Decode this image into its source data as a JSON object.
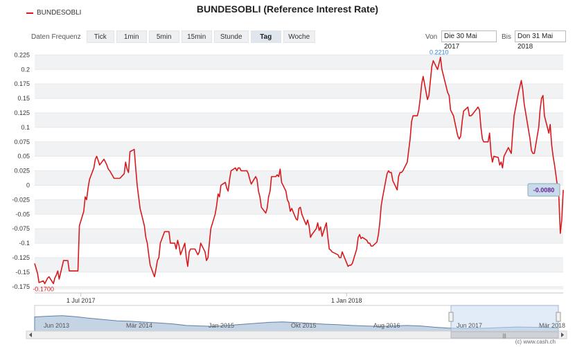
{
  "title": "BUNDESOBLI (Reference Interest Rate)",
  "legend": {
    "label": "BUNDESOBLI",
    "color": "#d7191c"
  },
  "toolbar": {
    "freq_label": "Daten Frequenz",
    "buttons": [
      "Tick",
      "1min",
      "5min",
      "15min",
      "Stunde",
      "Tag",
      "Woche"
    ],
    "active": "Tag",
    "from_label": "Von",
    "from_value": "Die 30 Mai 2017",
    "to_label": "Bis",
    "to_value": "Don 31 Mai 2018"
  },
  "credit": "(c) www.cash.ch",
  "navigator": {
    "labels": [
      "Jun 2013",
      "Mär 2014",
      "Jan 2015",
      "Okt 2015",
      "Aug 2016",
      "Jun 2017",
      "Mär 2018"
    ],
    "selection": [
      "2017-05-30",
      "2018-05-31"
    ]
  },
  "chart_data": {
    "type": "line",
    "title": "BUNDESOBLI (Reference Interest Rate)",
    "xlabel": "",
    "ylabel": "",
    "x_ticks": [
      "1 Jul 2017",
      "1 Jan 2018"
    ],
    "y_ticks": [
      "-0.175",
      "-0.15",
      "-0.125",
      "-0.1",
      "-0.075",
      "-0.05",
      "-0.025",
      "0",
      "0.025",
      "0.05",
      "0.075",
      "0.1",
      "0.125",
      "0.15",
      "0.175",
      "0.2",
      "0.225"
    ],
    "xlim": [
      "2017-05-30",
      "2018-05-31"
    ],
    "ylim": [
      -0.18,
      0.235
    ],
    "grid": true,
    "legend_position": "top-left",
    "annotations": {
      "min_label": "-0.1700",
      "max_label": "0.2210",
      "last_label": "-0.0080"
    },
    "series": [
      {
        "name": "BUNDESOBLI",
        "color": "#d7191c",
        "points": [
          [
            "2017-05-30",
            -0.135
          ],
          [
            "2017-06-01",
            -0.152
          ],
          [
            "2017-06-02",
            -0.168
          ],
          [
            "2017-06-05",
            -0.165
          ],
          [
            "2017-06-06",
            -0.17
          ],
          [
            "2017-06-07",
            -0.165
          ],
          [
            "2017-06-08",
            -0.16
          ],
          [
            "2017-06-09",
            -0.158
          ],
          [
            "2017-06-12",
            -0.17
          ],
          [
            "2017-06-13",
            -0.16
          ],
          [
            "2017-06-14",
            -0.155
          ],
          [
            "2017-06-15",
            -0.148
          ],
          [
            "2017-06-16",
            -0.162
          ],
          [
            "2017-06-19",
            -0.13
          ],
          [
            "2017-06-20",
            -0.13
          ],
          [
            "2017-06-21",
            -0.13
          ],
          [
            "2017-06-22",
            -0.13
          ],
          [
            "2017-06-23",
            -0.148
          ],
          [
            "2017-06-26",
            -0.148
          ],
          [
            "2017-06-27",
            -0.148
          ],
          [
            "2017-06-28",
            -0.148
          ],
          [
            "2017-06-29",
            -0.148
          ],
          [
            "2017-06-30",
            -0.07
          ],
          [
            "2017-07-03",
            -0.045
          ],
          [
            "2017-07-04",
            -0.02
          ],
          [
            "2017-07-05",
            -0.025
          ],
          [
            "2017-07-06",
            -0.005
          ],
          [
            "2017-07-07",
            0.01
          ],
          [
            "2017-07-10",
            0.03
          ],
          [
            "2017-07-11",
            0.045
          ],
          [
            "2017-07-12",
            0.05
          ],
          [
            "2017-07-13",
            0.043
          ],
          [
            "2017-07-14",
            0.035
          ],
          [
            "2017-07-17",
            0.045
          ],
          [
            "2017-07-18",
            0.04
          ],
          [
            "2017-07-19",
            0.035
          ],
          [
            "2017-07-20",
            0.028
          ],
          [
            "2017-07-21",
            0.025
          ],
          [
            "2017-07-24",
            0.012
          ],
          [
            "2017-07-25",
            0.012
          ],
          [
            "2017-07-26",
            0.012
          ],
          [
            "2017-07-27",
            0.012
          ],
          [
            "2017-07-28",
            0.012
          ],
          [
            "2017-07-31",
            0.02
          ],
          [
            "2017-08-01",
            0.04
          ],
          [
            "2017-08-02",
            0.028
          ],
          [
            "2017-08-03",
            0.022
          ],
          [
            "2017-08-04",
            0.058
          ],
          [
            "2017-08-07",
            0.062
          ],
          [
            "2017-08-08",
            0.03
          ],
          [
            "2017-08-09",
            0.0
          ],
          [
            "2017-08-10",
            -0.02
          ],
          [
            "2017-08-11",
            -0.04
          ],
          [
            "2017-08-14",
            -0.07
          ],
          [
            "2017-08-15",
            -0.09
          ],
          [
            "2017-08-16",
            -0.1
          ],
          [
            "2017-08-17",
            -0.12
          ],
          [
            "2017-08-18",
            -0.138
          ],
          [
            "2017-08-21",
            -0.158
          ],
          [
            "2017-08-22",
            -0.145
          ],
          [
            "2017-08-23",
            -0.13
          ],
          [
            "2017-08-24",
            -0.125
          ],
          [
            "2017-08-25",
            -0.1
          ],
          [
            "2017-08-28",
            -0.08
          ],
          [
            "2017-08-29",
            -0.08
          ],
          [
            "2017-08-30",
            -0.08
          ],
          [
            "2017-08-31",
            -0.08
          ],
          [
            "2017-09-01",
            -0.1
          ],
          [
            "2017-09-04",
            -0.1
          ],
          [
            "2017-09-05",
            -0.11
          ],
          [
            "2017-09-06",
            -0.095
          ],
          [
            "2017-09-07",
            -0.105
          ],
          [
            "2017-09-08",
            -0.12
          ],
          [
            "2017-09-11",
            -0.1
          ],
          [
            "2017-09-12",
            -0.125
          ],
          [
            "2017-09-13",
            -0.14
          ],
          [
            "2017-09-14",
            -0.115
          ],
          [
            "2017-09-15",
            -0.11
          ],
          [
            "2017-09-18",
            -0.11
          ],
          [
            "2017-09-19",
            -0.115
          ],
          [
            "2017-09-20",
            -0.12
          ],
          [
            "2017-09-21",
            -0.115
          ],
          [
            "2017-09-22",
            -0.1
          ],
          [
            "2017-09-25",
            -0.115
          ],
          [
            "2017-09-26",
            -0.13
          ],
          [
            "2017-09-27",
            -0.125
          ],
          [
            "2017-09-28",
            -0.1
          ],
          [
            "2017-09-29",
            -0.075
          ],
          [
            "2017-10-02",
            -0.05
          ],
          [
            "2017-10-03",
            -0.035
          ],
          [
            "2017-10-04",
            -0.015
          ],
          [
            "2017-10-05",
            -0.02
          ],
          [
            "2017-10-06",
            0.0
          ],
          [
            "2017-10-09",
            0.005
          ],
          [
            "2017-10-10",
            -0.005
          ],
          [
            "2017-10-11",
            -0.01
          ],
          [
            "2017-10-12",
            0.01
          ],
          [
            "2017-10-13",
            0.025
          ],
          [
            "2017-10-16",
            0.03
          ],
          [
            "2017-10-17",
            0.025
          ],
          [
            "2017-10-18",
            0.03
          ],
          [
            "2017-10-19",
            0.03
          ],
          [
            "2017-10-20",
            0.025
          ],
          [
            "2017-10-23",
            0.025
          ],
          [
            "2017-10-24",
            0.025
          ],
          [
            "2017-10-25",
            0.02
          ],
          [
            "2017-10-26",
            0.01
          ],
          [
            "2017-10-27",
            0.002
          ],
          [
            "2017-10-30",
            0.015
          ],
          [
            "2017-10-31",
            0.01
          ],
          [
            "2017-11-01",
            -0.01
          ],
          [
            "2017-11-02",
            -0.02
          ],
          [
            "2017-11-03",
            -0.038
          ],
          [
            "2017-11-06",
            -0.048
          ],
          [
            "2017-11-07",
            -0.04
          ],
          [
            "2017-11-08",
            -0.02
          ],
          [
            "2017-11-09",
            -0.01
          ],
          [
            "2017-11-10",
            0.015
          ],
          [
            "2017-11-13",
            0.015
          ],
          [
            "2017-11-14",
            0.018
          ],
          [
            "2017-11-15",
            0.015
          ],
          [
            "2017-11-16",
            0.028
          ],
          [
            "2017-11-17",
            0.005
          ],
          [
            "2017-11-20",
            -0.01
          ],
          [
            "2017-11-21",
            -0.025
          ],
          [
            "2017-11-22",
            -0.03
          ],
          [
            "2017-11-23",
            -0.045
          ],
          [
            "2017-11-24",
            -0.04
          ],
          [
            "2017-11-27",
            -0.058
          ],
          [
            "2017-11-28",
            -0.06
          ],
          [
            "2017-11-29",
            -0.04
          ],
          [
            "2017-11-30",
            -0.038
          ],
          [
            "2017-12-01",
            -0.05
          ],
          [
            "2017-12-04",
            -0.068
          ],
          [
            "2017-12-05",
            -0.06
          ],
          [
            "2017-12-06",
            -0.07
          ],
          [
            "2017-12-07",
            -0.09
          ],
          [
            "2017-12-08",
            -0.085
          ],
          [
            "2017-12-11",
            -0.075
          ],
          [
            "2017-12-12",
            -0.065
          ],
          [
            "2017-12-13",
            -0.078
          ],
          [
            "2017-12-14",
            -0.072
          ],
          [
            "2017-12-15",
            -0.088
          ],
          [
            "2017-12-18",
            -0.065
          ],
          [
            "2017-12-19",
            -0.09
          ],
          [
            "2017-12-20",
            -0.11
          ],
          [
            "2017-12-21",
            -0.112
          ],
          [
            "2017-12-22",
            -0.115
          ],
          [
            "2017-12-26",
            -0.12
          ],
          [
            "2017-12-27",
            -0.125
          ],
          [
            "2017-12-28",
            -0.125
          ],
          [
            "2017-12-29",
            -0.115
          ],
          [
            "2018-01-02",
            -0.14
          ],
          [
            "2018-01-03",
            -0.138
          ],
          [
            "2018-01-04",
            -0.138
          ],
          [
            "2018-01-05",
            -0.135
          ],
          [
            "2018-01-08",
            -0.11
          ],
          [
            "2018-01-09",
            -0.09
          ],
          [
            "2018-01-10",
            -0.085
          ],
          [
            "2018-01-11",
            -0.092
          ],
          [
            "2018-01-12",
            -0.09
          ],
          [
            "2018-01-15",
            -0.095
          ],
          [
            "2018-01-16",
            -0.1
          ],
          [
            "2018-01-17",
            -0.1
          ],
          [
            "2018-01-18",
            -0.105
          ],
          [
            "2018-01-19",
            -0.105
          ],
          [
            "2018-01-22",
            -0.098
          ],
          [
            "2018-01-23",
            -0.085
          ],
          [
            "2018-01-24",
            -0.065
          ],
          [
            "2018-01-25",
            -0.035
          ],
          [
            "2018-01-26",
            -0.02
          ],
          [
            "2018-01-29",
            0.02
          ],
          [
            "2018-01-30",
            0.025
          ],
          [
            "2018-01-31",
            0.022
          ],
          [
            "2018-02-01",
            0.022
          ],
          [
            "2018-02-02",
            0.008
          ],
          [
            "2018-02-05",
            -0.008
          ],
          [
            "2018-02-06",
            0.015
          ],
          [
            "2018-02-07",
            0.022
          ],
          [
            "2018-02-08",
            0.022
          ],
          [
            "2018-02-09",
            0.025
          ],
          [
            "2018-02-12",
            0.04
          ],
          [
            "2018-02-13",
            0.06
          ],
          [
            "2018-02-14",
            0.08
          ],
          [
            "2018-02-15",
            0.11
          ],
          [
            "2018-02-16",
            0.12
          ],
          [
            "2018-02-19",
            0.12
          ],
          [
            "2018-02-20",
            0.13
          ],
          [
            "2018-02-21",
            0.15
          ],
          [
            "2018-02-22",
            0.175
          ],
          [
            "2018-02-23",
            0.188
          ],
          [
            "2018-02-26",
            0.148
          ],
          [
            "2018-02-27",
            0.155
          ],
          [
            "2018-02-28",
            0.18
          ],
          [
            "2018-03-01",
            0.205
          ],
          [
            "2018-03-02",
            0.215
          ],
          [
            "2018-03-05",
            0.2
          ],
          [
            "2018-03-06",
            0.21
          ],
          [
            "2018-03-07",
            0.221
          ],
          [
            "2018-03-08",
            0.2
          ],
          [
            "2018-03-09",
            0.19
          ],
          [
            "2018-03-12",
            0.16
          ],
          [
            "2018-03-13",
            0.155
          ],
          [
            "2018-03-14",
            0.13
          ],
          [
            "2018-03-15",
            0.125
          ],
          [
            "2018-03-16",
            0.12
          ],
          [
            "2018-03-19",
            0.085
          ],
          [
            "2018-03-20",
            0.08
          ],
          [
            "2018-03-21",
            0.085
          ],
          [
            "2018-03-22",
            0.11
          ],
          [
            "2018-03-23",
            0.128
          ],
          [
            "2018-03-26",
            0.135
          ],
          [
            "2018-03-27",
            0.12
          ],
          [
            "2018-03-28",
            0.12
          ],
          [
            "2018-03-29",
            0.122
          ],
          [
            "2018-04-02",
            0.135
          ],
          [
            "2018-04-03",
            0.13
          ],
          [
            "2018-04-04",
            0.1
          ],
          [
            "2018-04-05",
            0.08
          ],
          [
            "2018-04-06",
            0.075
          ],
          [
            "2018-04-09",
            0.075
          ],
          [
            "2018-04-10",
            0.09
          ],
          [
            "2018-04-11",
            0.055
          ],
          [
            "2018-04-12",
            0.04
          ],
          [
            "2018-04-13",
            0.05
          ],
          [
            "2018-04-16",
            0.048
          ],
          [
            "2018-04-17",
            0.035
          ],
          [
            "2018-04-18",
            0.04
          ],
          [
            "2018-04-19",
            0.03
          ],
          [
            "2018-04-20",
            0.05
          ],
          [
            "2018-04-23",
            0.065
          ],
          [
            "2018-04-24",
            0.06
          ],
          [
            "2018-04-25",
            0.055
          ],
          [
            "2018-04-26",
            0.09
          ],
          [
            "2018-04-27",
            0.12
          ],
          [
            "2018-04-30",
            0.16
          ],
          [
            "2018-05-02",
            0.181
          ],
          [
            "2018-05-03",
            0.165
          ],
          [
            "2018-05-04",
            0.14
          ],
          [
            "2018-05-07",
            0.095
          ],
          [
            "2018-05-08",
            0.08
          ],
          [
            "2018-05-09",
            0.06
          ],
          [
            "2018-05-10",
            0.055
          ],
          [
            "2018-05-11",
            0.055
          ],
          [
            "2018-05-14",
            0.1
          ],
          [
            "2018-05-15",
            0.13
          ],
          [
            "2018-05-16",
            0.15
          ],
          [
            "2018-05-17",
            0.155
          ],
          [
            "2018-05-18",
            0.12
          ],
          [
            "2018-05-21",
            0.09
          ],
          [
            "2018-05-22",
            0.105
          ],
          [
            "2018-05-23",
            0.07
          ],
          [
            "2018-05-24",
            0.05
          ],
          [
            "2018-05-25",
            0.035
          ],
          [
            "2018-05-28",
            -0.02
          ],
          [
            "2018-05-29",
            -0.083
          ],
          [
            "2018-05-30",
            -0.06
          ],
          [
            "2018-05-31",
            -0.008
          ]
        ]
      }
    ]
  }
}
